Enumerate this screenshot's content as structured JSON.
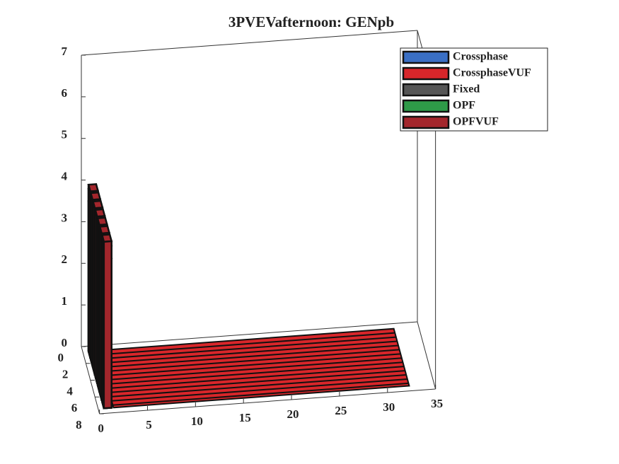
{
  "chart_data": {
    "type": "bar3",
    "title": "3PVEVafternoon: GENpb",
    "rows": [
      1,
      2,
      3,
      4,
      5,
      6,
      7
    ],
    "series": [
      {
        "name": "Crossphase",
        "color": "#3a6fc4",
        "values": [
          3.6,
          3.6,
          3.6,
          3.6,
          3.6,
          3.6,
          3.6
        ]
      },
      {
        "name": "CrossphaseVUF",
        "color": "#d8262a",
        "values": [
          3.9,
          3.9,
          3.9,
          3.9,
          3.9,
          3.9,
          3.9
        ]
      },
      {
        "name": "Fixed",
        "color": "#555555",
        "values": [
          0,
          0,
          0,
          0,
          0,
          0,
          0
        ]
      },
      {
        "name": "OPF",
        "color": "#2e9a48",
        "values": [
          0,
          0,
          0,
          0,
          0,
          0,
          0
        ]
      },
      {
        "name": "OPFVUF",
        "color": "#a3262c",
        "values": [
          4,
          4,
          4,
          4,
          4,
          4,
          4
        ]
      }
    ],
    "xlim": [
      0,
      35
    ],
    "xticks": [
      0,
      5,
      10,
      15,
      20,
      25,
      30,
      35
    ],
    "ylim": [
      0,
      8
    ],
    "yticks": [
      0,
      2,
      4,
      6,
      8
    ],
    "zlim": [
      0,
      7
    ],
    "zticks": [
      0,
      1,
      2,
      3,
      4,
      5,
      6,
      7
    ],
    "legend": "top-right"
  }
}
